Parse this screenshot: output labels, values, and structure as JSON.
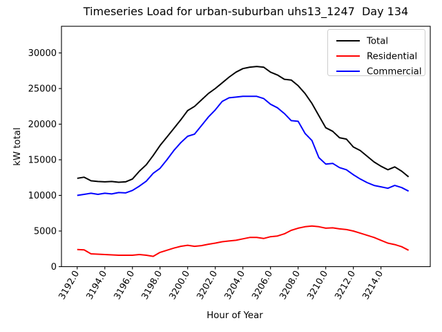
{
  "chart_data": {
    "type": "line",
    "title": "Timeseries Load for urban-suburban uhs13_1247  Day 134",
    "xlabel": "Hour of Year",
    "ylabel": "kW total",
    "legend_position": "upper right",
    "grid": false,
    "axes": {
      "x_min": 3190.86,
      "x_max": 3217.57,
      "y_min": 0,
      "y_max": 33740
    },
    "xticks": [
      {
        "value": 3192,
        "label": "3192.0"
      },
      {
        "value": 3194,
        "label": "3194.0"
      },
      {
        "value": 3196,
        "label": "3196.0"
      },
      {
        "value": 3198,
        "label": "3198.0"
      },
      {
        "value": 3200,
        "label": "3200.0"
      },
      {
        "value": 3202,
        "label": "3202.0"
      },
      {
        "value": 3204,
        "label": "3204.0"
      },
      {
        "value": 3206,
        "label": "3206.0"
      },
      {
        "value": 3208,
        "label": "3208.0"
      },
      {
        "value": 3210,
        "label": "3210.0"
      },
      {
        "value": 3212,
        "label": "3212.0"
      },
      {
        "value": 3214,
        "label": "3214.0"
      }
    ],
    "yticks": [
      {
        "value": 0,
        "label": "0"
      },
      {
        "value": 5000,
        "label": "5000"
      },
      {
        "value": 10000,
        "label": "10000"
      },
      {
        "value": 15000,
        "label": "15000"
      },
      {
        "value": 20000,
        "label": "20000"
      },
      {
        "value": 25000,
        "label": "25000"
      },
      {
        "value": 30000,
        "label": "30000"
      }
    ],
    "x": [
      3192,
      3192.5,
      3193,
      3193.5,
      3194,
      3194.5,
      3195,
      3195.5,
      3196,
      3196.5,
      3197,
      3197.5,
      3198,
      3198.5,
      3199,
      3199.5,
      3200,
      3200.5,
      3201,
      3201.5,
      3202,
      3202.5,
      3203,
      3203.5,
      3204,
      3204.5,
      3205,
      3205.5,
      3206,
      3206.5,
      3207,
      3207.5,
      3208,
      3208.5,
      3209,
      3209.5,
      3210,
      3210.5,
      3211,
      3211.5,
      3212,
      3212.5,
      3213,
      3213.5,
      3214,
      3214.5,
      3215,
      3215.5,
      3216
    ],
    "series": [
      {
        "name": "Total",
        "color": "#000000",
        "values": [
          12400,
          12550,
          12050,
          11950,
          11900,
          11950,
          11850,
          11900,
          12300,
          13400,
          14300,
          15600,
          17000,
          18200,
          19400,
          20600,
          21900,
          22500,
          23400,
          24300,
          25000,
          25800,
          26600,
          27300,
          27800,
          28000,
          28100,
          28000,
          27300,
          26900,
          26300,
          26200,
          25400,
          24300,
          22900,
          21200,
          19500,
          19000,
          18100,
          17900,
          16800,
          16300,
          15500,
          14700,
          14100,
          13600,
          14000,
          13400,
          12600
        ]
      },
      {
        "name": "Residential",
        "color": "#ff0000",
        "values": [
          2400,
          2350,
          1800,
          1750,
          1700,
          1650,
          1600,
          1600,
          1600,
          1700,
          1600,
          1450,
          2000,
          2300,
          2600,
          2850,
          3000,
          2850,
          2950,
          3150,
          3300,
          3500,
          3600,
          3700,
          3900,
          4100,
          4100,
          3950,
          4200,
          4300,
          4600,
          5100,
          5400,
          5600,
          5700,
          5600,
          5400,
          5450,
          5300,
          5200,
          5000,
          4700,
          4400,
          4100,
          3700,
          3300,
          3100,
          2800,
          2300
        ]
      },
      {
        "name": "Commercial",
        "color": "#0000ff",
        "values": [
          10000,
          10150,
          10300,
          10150,
          10300,
          10200,
          10400,
          10350,
          10700,
          11300,
          12000,
          13100,
          13800,
          15000,
          16300,
          17400,
          18300,
          18600,
          19800,
          21000,
          22000,
          23200,
          23700,
          23800,
          23900,
          23900,
          23900,
          23600,
          22800,
          22300,
          21500,
          20500,
          20400,
          18700,
          17700,
          15300,
          14400,
          14500,
          13900,
          13600,
          12900,
          12300,
          11800,
          11400,
          11200,
          11000,
          11400,
          11100,
          10600
        ]
      }
    ]
  }
}
